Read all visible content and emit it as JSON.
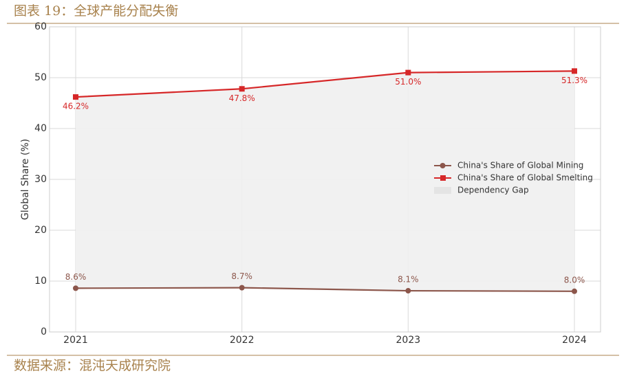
{
  "header": {
    "title": "图表 19：全球产能分配失衡"
  },
  "chart_data": {
    "type": "line",
    "ylabel": "Global Share (%)",
    "categories": [
      "2021",
      "2022",
      "2023",
      "2024"
    ],
    "series": [
      {
        "name": "China's Share of Global Mining",
        "color": "#8c564b",
        "marker": "circle",
        "values": [
          8.6,
          8.7,
          8.1,
          8.0
        ],
        "value_labels": [
          "8.6%",
          "8.7%",
          "8.1%",
          "8.0%"
        ]
      },
      {
        "name": "China's Share of Global Smelting",
        "color": "#d62728",
        "marker": "square",
        "values": [
          46.2,
          47.8,
          51.0,
          51.3
        ],
        "value_labels": [
          "46.2%",
          "47.8%",
          "51.0%",
          "51.3%"
        ]
      }
    ],
    "gap": {
      "name": "Dependency Gap",
      "color": "#efefef"
    },
    "ylim": [
      0,
      60
    ],
    "yticks": [
      0,
      10,
      20,
      30,
      40,
      50,
      60
    ],
    "grid": true
  },
  "footer": {
    "source": "数据来源：混沌天成研究院"
  }
}
